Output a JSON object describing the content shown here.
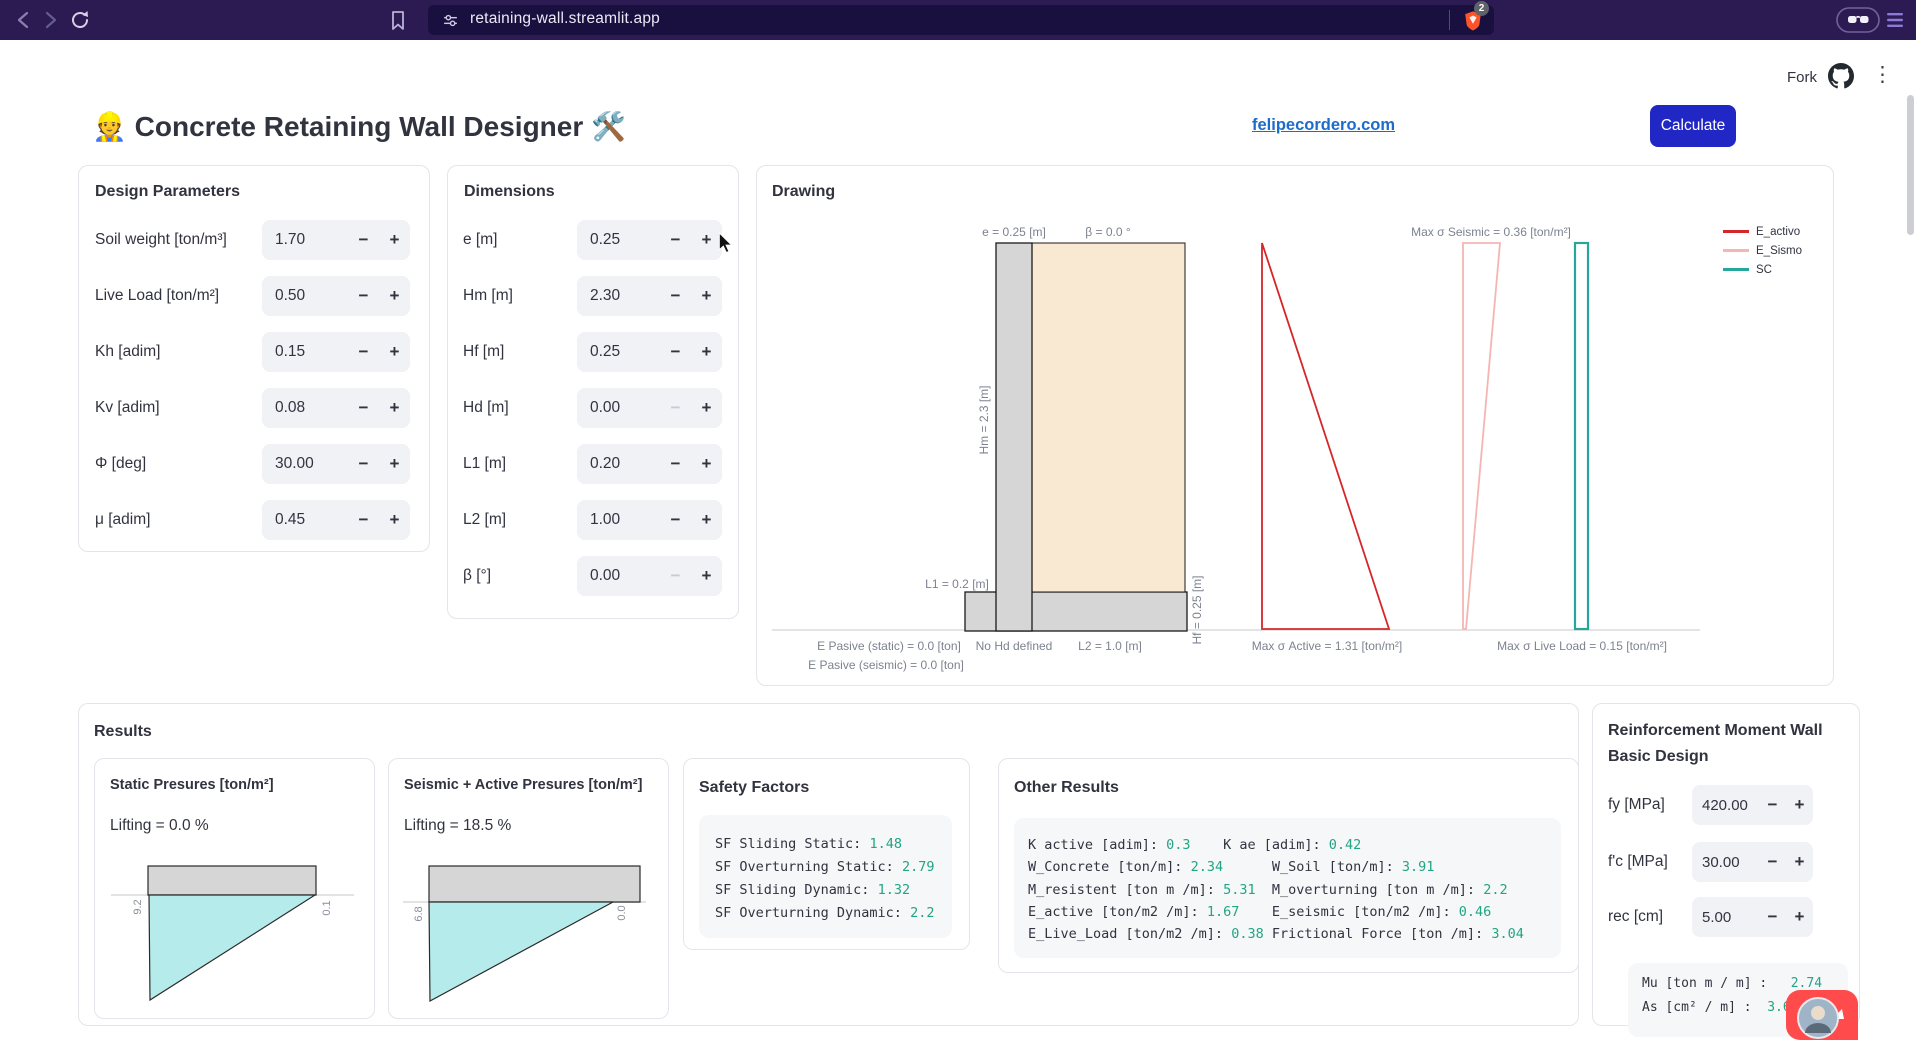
{
  "browser": {
    "url": "retaining-wall.streamlit.app",
    "shield_badge": "2"
  },
  "app_header": {
    "fork_label": "Fork",
    "title": "👷 Concrete Retaining Wall Designer 🛠️",
    "link_label": "felipecordero.com",
    "calculate_label": "Calculate",
    "menu_icon": "⋮"
  },
  "design_parameters": {
    "title": "Design Parameters",
    "rows": [
      {
        "label": "Soil weight [ton/m³]",
        "value": "1.70"
      },
      {
        "label": "Live Load [ton/m²]",
        "value": "0.50"
      },
      {
        "label": "Kh [adim]",
        "value": "0.15"
      },
      {
        "label": "Kv [adim]",
        "value": "0.08"
      },
      {
        "label": "Φ [deg]",
        "value": "30.00"
      },
      {
        "label": "μ [adim]",
        "value": "0.45"
      }
    ]
  },
  "dimensions": {
    "title": "Dimensions",
    "rows": [
      {
        "label": "e [m]",
        "value": "0.25"
      },
      {
        "label": "Hm [m]",
        "value": "2.30"
      },
      {
        "label": "Hf [m]",
        "value": "0.25"
      },
      {
        "label": "Hd [m]",
        "value": "0.00"
      },
      {
        "label": "L1 [m]",
        "value": "0.20"
      },
      {
        "label": "L2 [m]",
        "value": "1.00"
      },
      {
        "label": "β [°]",
        "value": "0.00"
      }
    ]
  },
  "drawing": {
    "title": "Drawing",
    "labels": {
      "e": "e = 0.25 [m]",
      "beta": "β = 0.0 °",
      "hm": "Hm = 2.3 [m]",
      "hf": "Hf = 0.25 [m]",
      "l1": "L1 = 0.2 [m]",
      "l2": "L2 = 1.0 [m]",
      "no_hd": "No Hd defined",
      "e_pasive_static": "E Pasive (static) = 0.0 [ton]",
      "e_pasive_seismic": "E Pasive (seismic) = 0.0 [ton]",
      "max_active": "Max σ Active = 1.31 [ton/m²]",
      "max_seismic": "Max σ Seismic = 0.36 [ton/m²]",
      "max_live_load": "Max σ Live Load = 0.15 [ton/m²]"
    },
    "legend": [
      {
        "label": "E_activo",
        "color": "#d62728"
      },
      {
        "label": "E_Sismo",
        "color": "#f4b6b2"
      },
      {
        "label": "SC",
        "color": "#27a79b"
      }
    ]
  },
  "results": {
    "title": "Results",
    "static_chart": {
      "title": "Static Presures [ton/m²]",
      "lifting": "Lifting = 0.0 %",
      "left_value": "9.2",
      "right_value": "0.1"
    },
    "seismic_chart": {
      "title": "Seismic + Active Presures [ton/m²]",
      "lifting": "Lifting = 18.5 %",
      "left_value": "6.8",
      "right_value": "0.0"
    },
    "safety_factors": {
      "title": "Safety Factors",
      "lines": [
        [
          {
            "t": "SF Sliding Static: "
          },
          {
            "t": "1.48",
            "v": true
          }
        ],
        [
          {
            "t": "SF Overturning Static: "
          },
          {
            "t": "2.79",
            "v": true
          }
        ],
        [
          {
            "t": "SF Sliding Dynamic: "
          },
          {
            "t": "1.32",
            "v": true
          }
        ],
        [
          {
            "t": "SF Overturning Dynamic: "
          },
          {
            "t": "2.2",
            "v": true
          }
        ]
      ]
    },
    "other_results": {
      "title": "Other Results",
      "lines": [
        [
          {
            "t": "K active [adim]: "
          },
          {
            "t": "0.3",
            "v": true
          },
          {
            "t": "    "
          },
          {
            "t": "K ae [adim]: "
          },
          {
            "t": "0.42",
            "v": true
          }
        ],
        [
          {
            "t": "W_Concrete [ton/m]: "
          },
          {
            "t": "2.34",
            "v": true
          },
          {
            "t": "      "
          },
          {
            "t": "W_Soil [ton/m]: "
          },
          {
            "t": "3.91",
            "v": true
          }
        ],
        [
          {
            "t": "M_resistent [ton m /m]: "
          },
          {
            "t": "5.31",
            "v": true
          },
          {
            "t": "  "
          },
          {
            "t": "M_overturning [ton m /m]: "
          },
          {
            "t": "2.2",
            "v": true
          }
        ],
        [
          {
            "t": "E_active [ton/m2 /m]: "
          },
          {
            "t": "1.67",
            "v": true
          },
          {
            "t": "    "
          },
          {
            "t": "E_seismic [ton/m2 /m]: "
          },
          {
            "t": "0.46",
            "v": true
          }
        ],
        [
          {
            "t": "E_Live_Load [ton/m2 /m]: "
          },
          {
            "t": "0.38",
            "v": true
          },
          {
            "t": " "
          },
          {
            "t": "Frictional Force [ton /m]: "
          },
          {
            "t": "3.04",
            "v": true
          }
        ]
      ]
    }
  },
  "reinforcement": {
    "title_line1": "Reinforcement Moment Wall",
    "title_line2": "Basic Design",
    "rows": [
      {
        "label": "fy [MPa]",
        "value": "420.00"
      },
      {
        "label": "f'c [MPa]",
        "value": "30.00"
      },
      {
        "label": "rec [cm]",
        "value": "5.00"
      }
    ],
    "code_lines": [
      [
        {
          "t": "Mu [ton m / m] :   "
        },
        {
          "t": "2.74",
          "v": true
        }
      ],
      [
        {
          "t": "As [cm² / m] :  "
        },
        {
          "t": "3.6",
          "v": true
        }
      ]
    ]
  },
  "colors": {
    "browser_bar": "#2b1b52",
    "primary_button": "#2127c4",
    "link": "#1c6ccc",
    "code_value": "#21a584",
    "wall_gray": "#d6d6d6",
    "soil_beige": "#f9e8d2",
    "pressure_cyan": "#b5eceb",
    "e_activo": "#d62728",
    "e_sismo": "#f4b6b2",
    "sc": "#27a79b"
  }
}
